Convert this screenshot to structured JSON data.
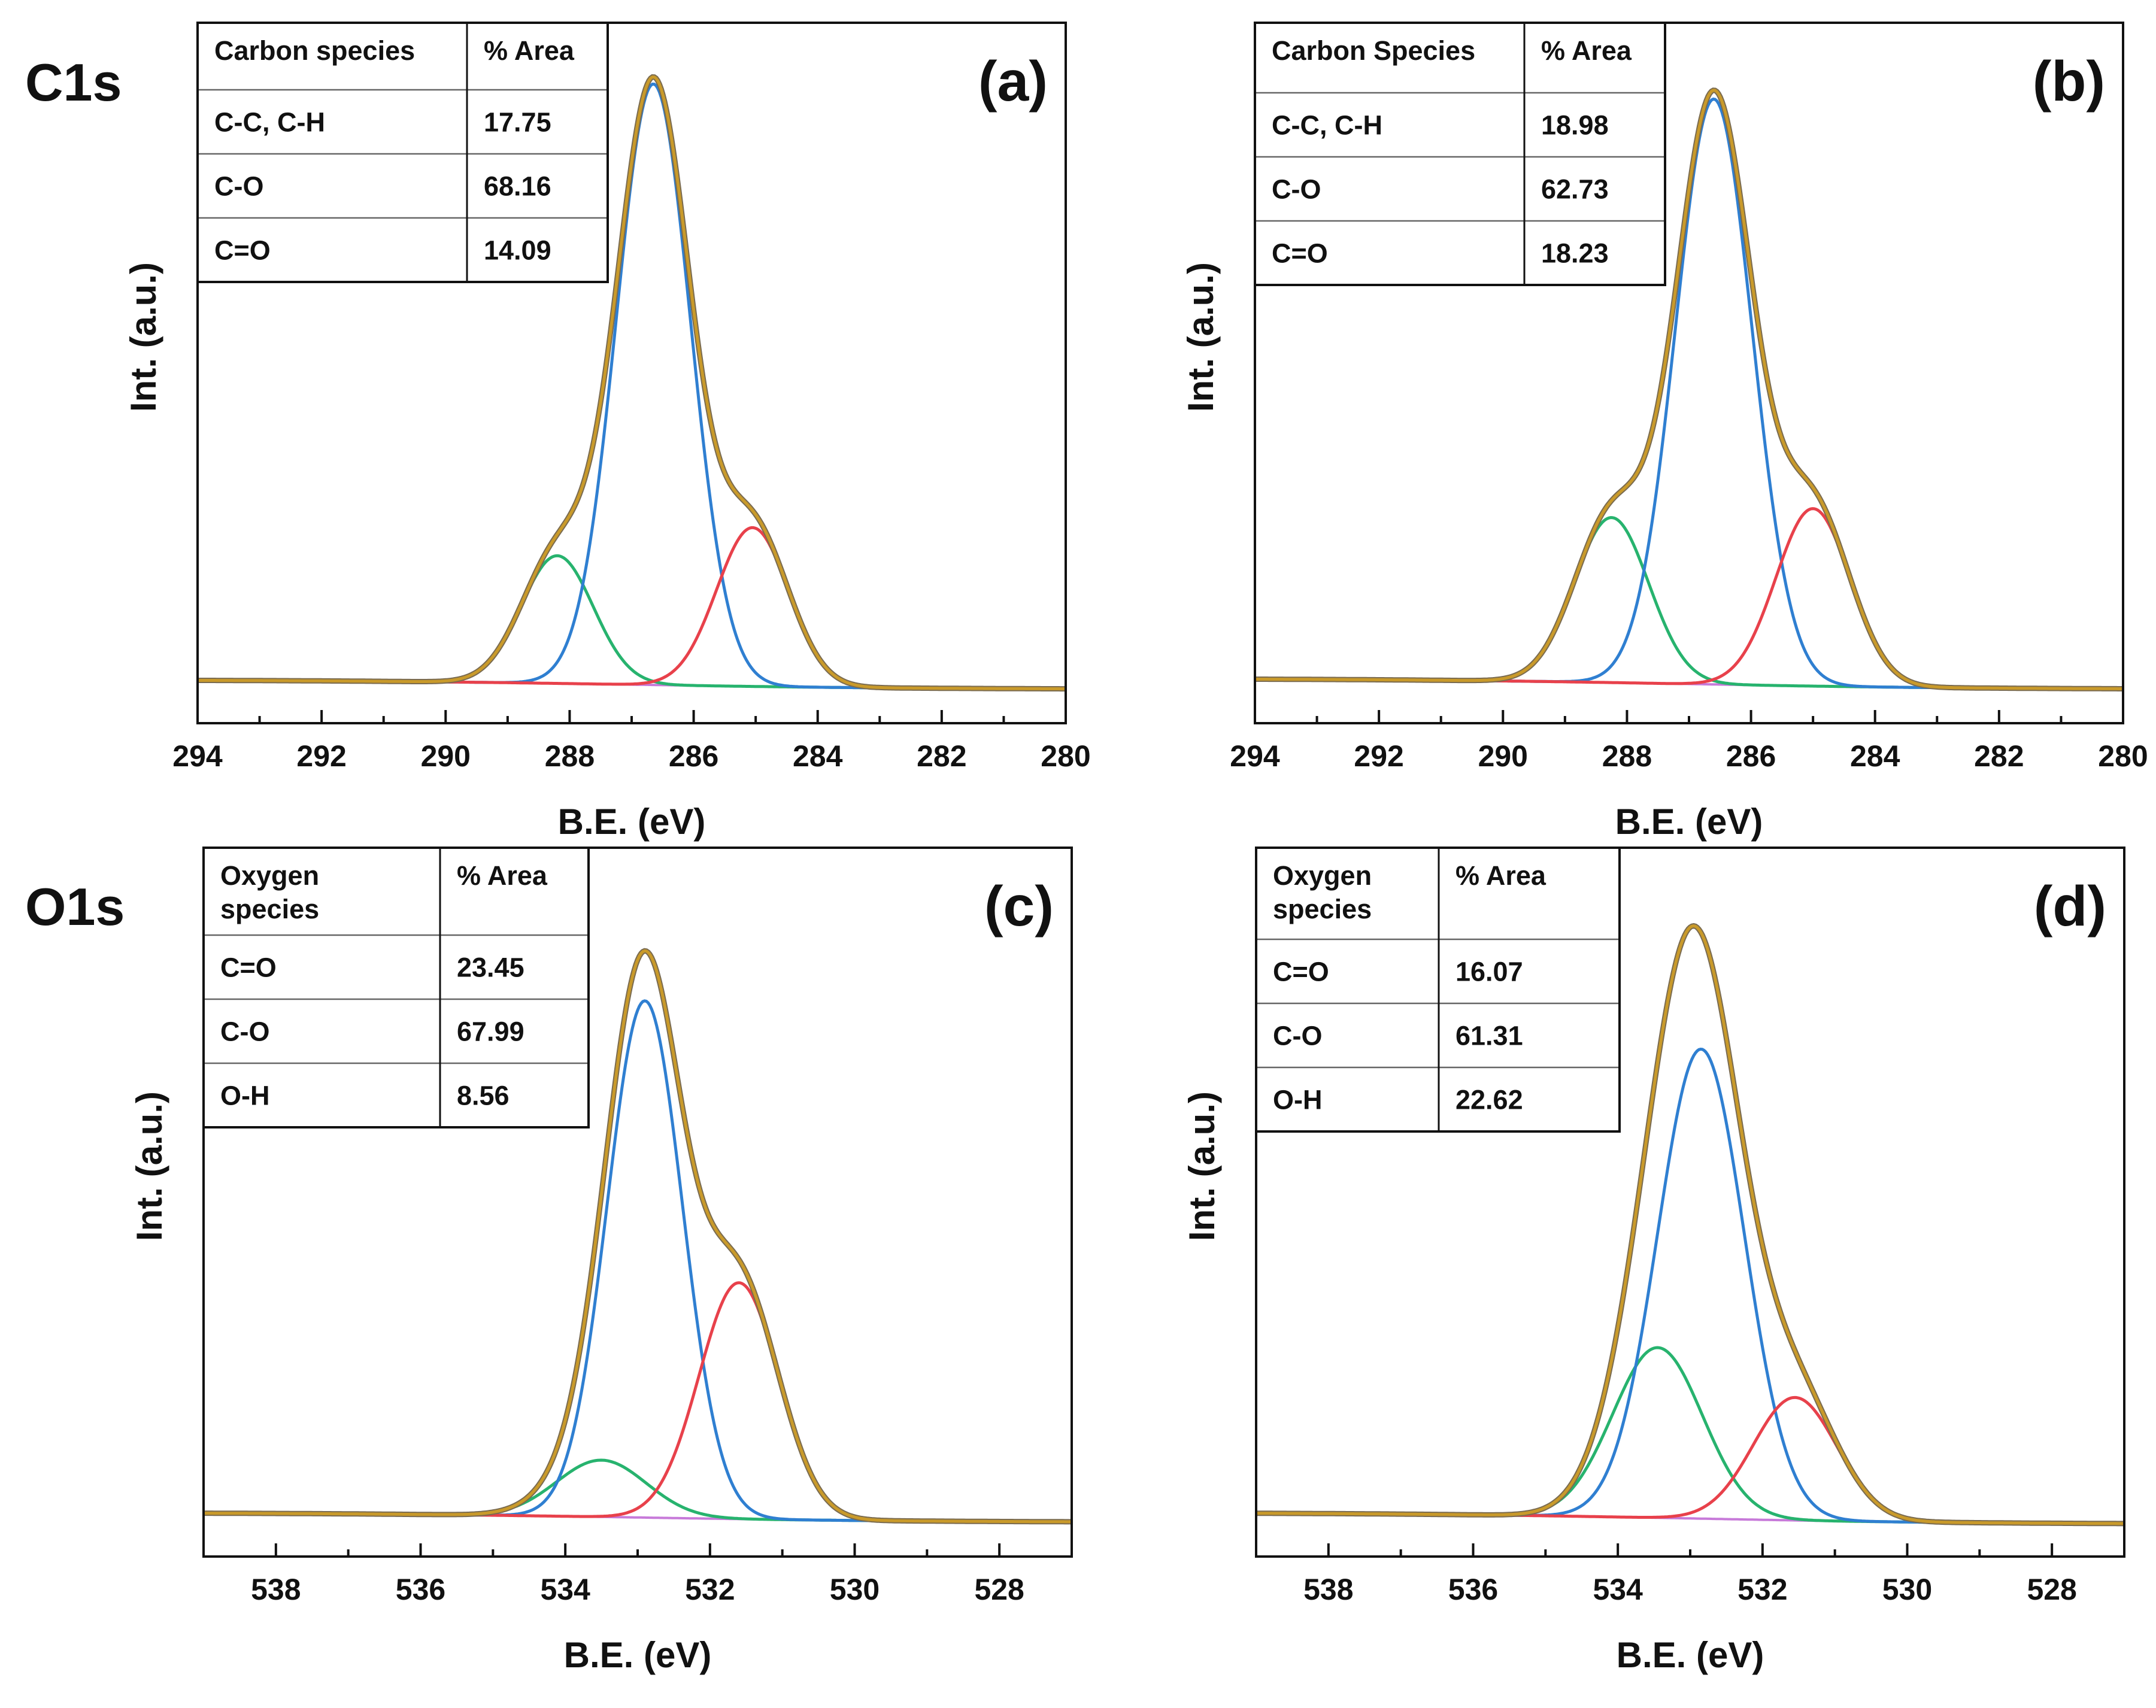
{
  "section_labels": {
    "c1s": "C1s",
    "o1s": "O1s"
  },
  "chart_data": [
    {
      "type": "line",
      "panel": "(a)",
      "xlabel": "B.E. (eV)",
      "ylabel": "Int. (a.u.)",
      "xlim": [
        294,
        280
      ],
      "xticks": [
        "294",
        "292",
        "290",
        "288",
        "286",
        "284",
        "282",
        "280"
      ],
      "ylim": [
        0,
        1
      ],
      "legend": "none",
      "background": {
        "left": 0.02,
        "right": 0.005
      },
      "peaks": [
        {
          "center": 288.2,
          "amplitude": 0.205,
          "width": 0.58,
          "color": "#27b36e"
        },
        {
          "center": 286.65,
          "amplitude": 0.965,
          "width": 0.6,
          "color": "#2f7fd1"
        },
        {
          "center": 285.05,
          "amplitude": 0.255,
          "width": 0.58,
          "color": "#e8414b"
        }
      ],
      "envelope_color": "#c99a2a",
      "background_color": "#c77ad9",
      "table": {
        "headers": [
          "Carbon species",
          "% Area"
        ],
        "rows": [
          [
            "C-C, C-H",
            "17.75"
          ],
          [
            "C-O",
            "68.16"
          ],
          [
            "C=O",
            "14.09"
          ]
        ]
      }
    },
    {
      "type": "line",
      "panel": "(b)",
      "xlabel": "B.E. (eV)",
      "ylabel": "Int. (a.u.)",
      "xlim": [
        294,
        280
      ],
      "xticks": [
        "294",
        "292",
        "290",
        "288",
        "286",
        "284",
        "282",
        "280"
      ],
      "ylim": [
        0,
        1
      ],
      "legend": "none",
      "background": {
        "left": 0.022,
        "right": 0.005
      },
      "peaks": [
        {
          "center": 288.25,
          "amplitude": 0.265,
          "width": 0.6,
          "color": "#27b36e"
        },
        {
          "center": 286.6,
          "amplitude": 0.94,
          "width": 0.62,
          "color": "#2f7fd1"
        },
        {
          "center": 285.0,
          "amplitude": 0.285,
          "width": 0.6,
          "color": "#e8414b"
        }
      ],
      "envelope_color": "#c99a2a",
      "background_color": "#c77ad9",
      "table": {
        "headers": [
          "Carbon Species",
          "% Area"
        ],
        "rows": [
          [
            "C-C, C-H",
            "18.98"
          ],
          [
            "C-O",
            "62.73"
          ],
          [
            "C=O",
            "18.23"
          ]
        ]
      }
    },
    {
      "type": "line",
      "panel": "(c)",
      "xlabel": "B.E. (eV)",
      "ylabel": "Int. (a.u.)",
      "xlim": [
        539,
        527
      ],
      "xticks": [
        "538",
        "536",
        "534",
        "532",
        "530",
        "528"
      ],
      "ylim": [
        0,
        1
      ],
      "legend": "none",
      "background": {
        "left": 0.02,
        "right": 0.005
      },
      "peaks": [
        {
          "center": 533.5,
          "amplitude": 0.09,
          "width": 0.62,
          "color": "#27b36e"
        },
        {
          "center": 532.9,
          "amplitude": 0.82,
          "width": 0.52,
          "color": "#2f7fd1"
        },
        {
          "center": 531.6,
          "amplitude": 0.375,
          "width": 0.55,
          "color": "#e8414b"
        }
      ],
      "envelope_color": "#c99a2a",
      "background_color": "#c77ad9",
      "table": {
        "headers": [
          "Oxygen\nspecies",
          "% Area"
        ],
        "rows": [
          [
            "C=O",
            "23.45"
          ],
          [
            "C-O",
            "67.99"
          ],
          [
            "O-H",
            "8.56"
          ]
        ]
      }
    },
    {
      "type": "line",
      "panel": "(d)",
      "xlabel": "B.E. (eV)",
      "ylabel": "Int. (a.u.)",
      "xlim": [
        539,
        527
      ],
      "xticks": [
        "538",
        "536",
        "534",
        "532",
        "530",
        "528"
      ],
      "ylim": [
        0,
        1
      ],
      "legend": "none",
      "background": {
        "left": 0.02,
        "right": 0.002
      },
      "peaks": [
        {
          "center": 533.45,
          "amplitude": 0.27,
          "width": 0.62,
          "color": "#27b36e"
        },
        {
          "center": 532.85,
          "amplitude": 0.745,
          "width": 0.6,
          "color": "#2f7fd1"
        },
        {
          "center": 531.55,
          "amplitude": 0.195,
          "width": 0.58,
          "color": "#e8414b"
        }
      ],
      "envelope_color": "#c99a2a",
      "background_color": "#c77ad9",
      "table": {
        "headers": [
          "Oxygen\nspecies",
          "% Area"
        ],
        "rows": [
          [
            "C=O",
            "16.07"
          ],
          [
            "C-O",
            "61.31"
          ],
          [
            "O-H",
            "22.62"
          ]
        ]
      }
    }
  ]
}
